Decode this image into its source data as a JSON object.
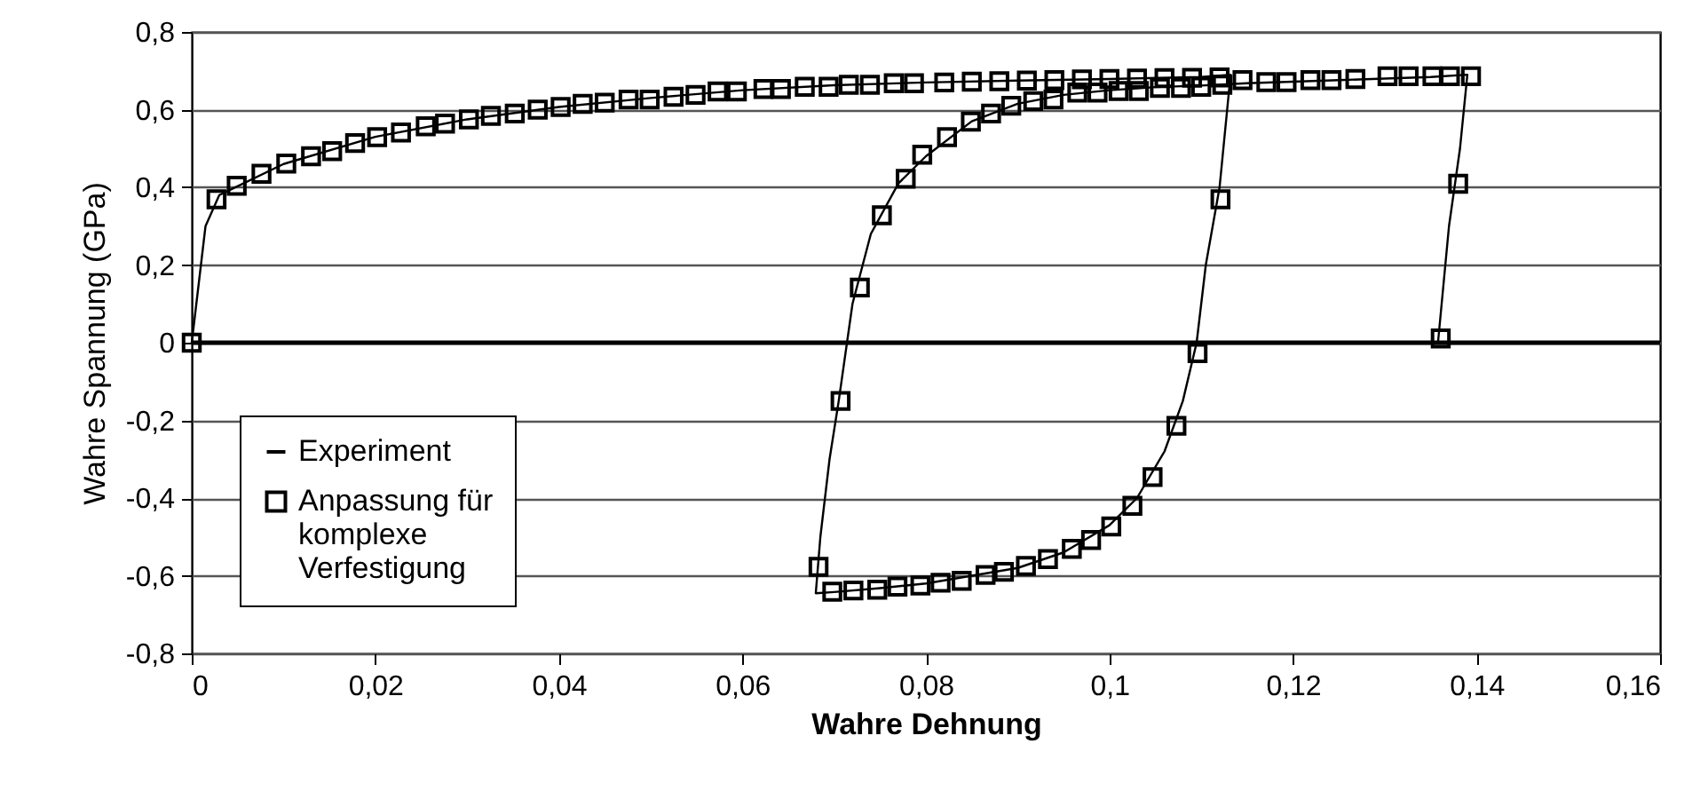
{
  "chart_data": {
    "type": "line",
    "xlabel": "Wahre Dehnung",
    "ylabel": "Wahre Spannung (GPa)",
    "xlim": [
      0,
      0.16
    ],
    "ylim": [
      -0.8,
      0.8
    ],
    "xticks": [
      0,
      {
        "value": 0.02,
        "label": "0,02"
      },
      {
        "value": 0.04,
        "label": "0,04"
      },
      {
        "value": 0.06,
        "label": "0,06"
      },
      {
        "value": 0.08,
        "label": "0,08"
      },
      {
        "value": 0.1,
        "label": "0,1"
      },
      {
        "value": 0.12,
        "label": "0,12"
      },
      {
        "value": 0.14,
        "label": "0,14"
      },
      {
        "value": 0.16,
        "label": "0,16"
      }
    ],
    "yticks": [
      {
        "value": -0.8,
        "label": "-0,8"
      },
      {
        "value": -0.6,
        "label": "-0,6"
      },
      {
        "value": -0.4,
        "label": "-0,4"
      },
      {
        "value": -0.2,
        "label": "-0,2"
      },
      0,
      {
        "value": 0.2,
        "label": "0,2"
      },
      {
        "value": 0.4,
        "label": "0,4"
      },
      {
        "value": 0.6,
        "label": "0,6"
      },
      {
        "value": 0.8,
        "label": "0,8"
      }
    ],
    "grid": "y",
    "legend": "bottom left",
    "ref_lines": [
      {
        "axis": "y",
        "value": 0,
        "color": "#000000"
      }
    ],
    "series": [
      {
        "name": "Experiment",
        "type": "line",
        "color": "#000000",
        "marker": "none",
        "line_style": "solid",
        "x": [
          0,
          0.0015,
          0.003,
          0.01,
          0.02,
          0.03,
          0.04,
          0.05,
          0.06,
          0.07,
          0.08,
          0.09,
          0.1,
          0.11,
          0.1132,
          0.112,
          0.1105,
          0.1095,
          0.108,
          0.106,
          0.103,
          0.1,
          0.095,
          0.09,
          0.085,
          0.08,
          0.075,
          0.07,
          0.068,
          0.0685,
          0.0695,
          0.0705,
          0.072,
          0.074,
          0.077,
          0.08,
          0.085,
          0.09,
          0.095,
          0.1,
          0.105,
          0.11,
          0.115,
          0.12,
          0.125,
          0.13,
          0.135,
          0.139,
          0.1382,
          0.137,
          0.1358
        ],
        "values": [
          0,
          0.3,
          0.38,
          0.46,
          0.53,
          0.575,
          0.607,
          0.63,
          0.65,
          0.663,
          0.67,
          0.675,
          0.679,
          0.684,
          0.69,
          0.4,
          0.2,
          0,
          -0.15,
          -0.28,
          -0.4,
          -0.47,
          -0.54,
          -0.58,
          -0.6,
          -0.62,
          -0.632,
          -0.642,
          -0.645,
          -0.5,
          -0.3,
          -0.15,
          0.1,
          0.28,
          0.41,
          0.48,
          0.57,
          0.615,
          0.638,
          0.65,
          0.658,
          0.662,
          0.668,
          0.672,
          0.676,
          0.68,
          0.684,
          0.69,
          0.5,
          0.3,
          0
        ]
      },
      {
        "name": "Anpassung für komplexe Verfestigung",
        "type": "scatter",
        "color": "#000000",
        "marker": "square",
        "x": [
          0,
          0.0027,
          0.0049,
          0.0076,
          0.0103,
          0.013,
          0.0153,
          0.0178,
          0.0202,
          0.0228,
          0.0255,
          0.0276,
          0.0302,
          0.0326,
          0.0352,
          0.0377,
          0.0402,
          0.0426,
          0.045,
          0.0476,
          0.0499,
          0.0525,
          0.0549,
          0.0573,
          0.0594,
          0.0623,
          0.0642,
          0.0668,
          0.0694,
          0.0716,
          0.0739,
          0.0765,
          0.0787,
          0.082,
          0.085,
          0.088,
          0.091,
          0.094,
          0.097,
          0.1,
          0.103,
          0.106,
          0.109,
          0.112,
          0.1121,
          0.1096,
          0.1073,
          0.1047,
          0.1025,
          0.1002,
          0.098,
          0.0959,
          0.0933,
          0.0909,
          0.0885,
          0.0865,
          0.0839,
          0.0816,
          0.0794,
          0.0769,
          0.0747,
          0.0721,
          0.0698,
          0.0683,
          0.0707,
          0.0728,
          0.0752,
          0.0778,
          0.0796,
          0.0823,
          0.0849,
          0.0871,
          0.0893,
          0.0917,
          0.0939,
          0.0965,
          0.0987,
          0.101,
          0.1032,
          0.1055,
          0.1078,
          0.11,
          0.1123,
          0.1145,
          0.1171,
          0.1193,
          0.1219,
          0.1242,
          0.1268,
          0.1303,
          0.1326,
          0.1352,
          0.1371,
          0.1394,
          0.138,
          0.1361
        ],
        "values": [
          0,
          0.369,
          0.404,
          0.435,
          0.461,
          0.48,
          0.493,
          0.514,
          0.529,
          0.541,
          0.557,
          0.564,
          0.575,
          0.584,
          0.59,
          0.6,
          0.607,
          0.615,
          0.618,
          0.626,
          0.626,
          0.633,
          0.638,
          0.647,
          0.647,
          0.653,
          0.653,
          0.659,
          0.659,
          0.664,
          0.664,
          0.668,
          0.668,
          0.67,
          0.672,
          0.673,
          0.675,
          0.676,
          0.678,
          0.679,
          0.68,
          0.681,
          0.682,
          0.683,
          0.369,
          -0.027,
          -0.214,
          -0.346,
          -0.42,
          -0.473,
          -0.508,
          -0.531,
          -0.557,
          -0.575,
          -0.59,
          -0.598,
          -0.613,
          -0.618,
          -0.625,
          -0.628,
          -0.636,
          -0.638,
          -0.641,
          -0.577,
          -0.15,
          0.142,
          0.328,
          0.422,
          0.484,
          0.529,
          0.569,
          0.59,
          0.61,
          0.622,
          0.626,
          0.644,
          0.644,
          0.648,
          0.648,
          0.656,
          0.656,
          0.659,
          0.664,
          0.676,
          0.671,
          0.671,
          0.676,
          0.676,
          0.679,
          0.686,
          0.686,
          0.686,
          0.686,
          0.686,
          0.409,
          0.011
        ]
      }
    ]
  }
}
